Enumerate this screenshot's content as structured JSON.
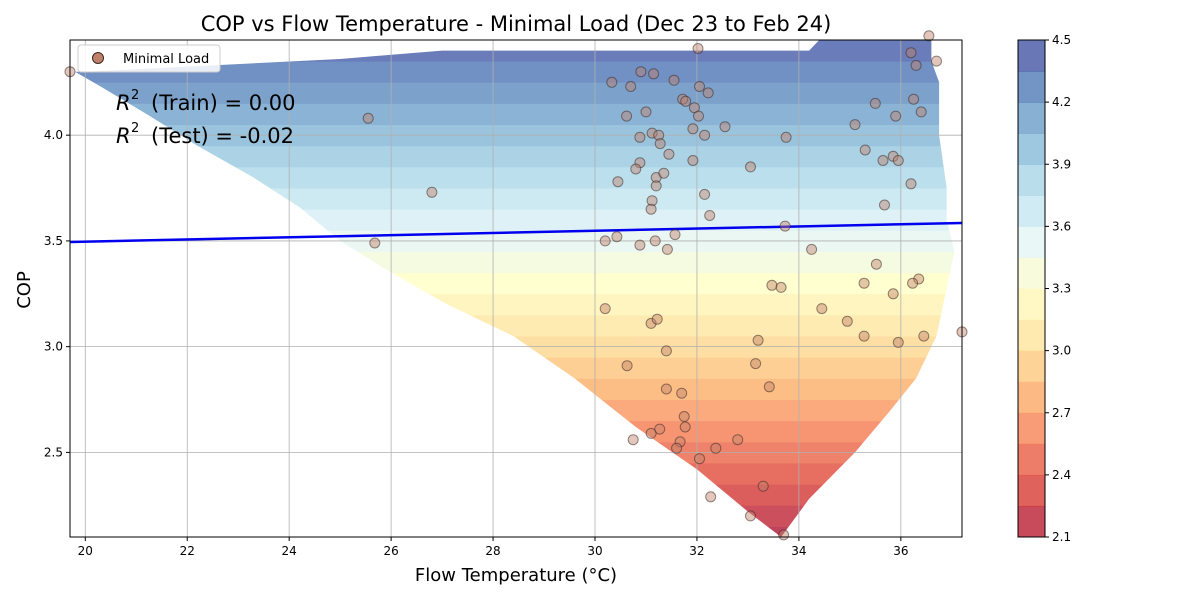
{
  "chart_data": {
    "type": "scatter",
    "title": "COP vs Flow Temperature - Minimal Load (Dec 23 to Feb 24)",
    "xlabel": "Flow Temperature (°C)",
    "ylabel": "COP",
    "xlim": [
      19.7,
      37.2
    ],
    "ylim": [
      2.1,
      4.45
    ],
    "x_ticks": [
      "20",
      "22",
      "24",
      "26",
      "28",
      "30",
      "32",
      "34",
      "36"
    ],
    "y_ticks": [
      "2.5",
      "3.0",
      "3.5",
      "4.0"
    ],
    "grid": true,
    "legend": {
      "placement": "top-left",
      "entries": [
        "Minimal Load"
      ]
    },
    "annotations": {
      "train": {
        "label": "(Train) = 0.00",
        "value": 0.0
      },
      "test": {
        "label": "(Test) = -0.02",
        "value": -0.02
      }
    },
    "regression_line": {
      "x": [
        19.7,
        37.2
      ],
      "y": [
        3.495,
        3.585
      ],
      "color": "#0000ee"
    },
    "colorbar": {
      "ticks": [
        "2.1",
        "2.4",
        "2.7",
        "3.0",
        "3.3",
        "3.6",
        "3.9",
        "4.2",
        "4.5"
      ],
      "range": [
        2.1,
        4.5
      ],
      "colormap": "RdYlBu"
    },
    "contour_region": {
      "bands": [
        2.1,
        2.15,
        2.25,
        2.35,
        2.45,
        2.55,
        2.65,
        2.75,
        2.85,
        2.95,
        3.05,
        3.15,
        3.25,
        3.35,
        3.45,
        3.55,
        3.65,
        3.75,
        3.85,
        3.95,
        4.05,
        4.15,
        4.25,
        4.35,
        4.45
      ],
      "left_edge": [
        [
          33.65,
          2.1
        ],
        [
          33.0,
          2.22
        ],
        [
          32.0,
          2.42
        ],
        [
          30.8,
          2.62
        ],
        [
          29.6,
          2.85
        ],
        [
          28.4,
          3.05
        ],
        [
          27.1,
          3.2
        ],
        [
          26.0,
          3.35
        ],
        [
          25.0,
          3.5
        ],
        [
          24.2,
          3.66
        ],
        [
          23.3,
          3.8
        ],
        [
          22.2,
          3.95
        ],
        [
          21.2,
          4.1
        ],
        [
          20.3,
          4.23
        ],
        [
          19.8,
          4.3
        ]
      ],
      "right_edge": [
        [
          33.65,
          2.1
        ],
        [
          34.2,
          2.28
        ],
        [
          35.1,
          2.5
        ],
        [
          35.8,
          2.7
        ],
        [
          36.3,
          2.85
        ],
        [
          36.7,
          3.05
        ],
        [
          37.05,
          3.45
        ],
        [
          36.9,
          3.6
        ],
        [
          36.9,
          3.75
        ],
        [
          36.75,
          4.0
        ],
        [
          36.75,
          4.25
        ],
        [
          36.6,
          4.35
        ],
        [
          36.6,
          4.45
        ],
        [
          34.4,
          4.45
        ],
        [
          34.2,
          4.4
        ],
        [
          27.0,
          4.4
        ],
        [
          25.0,
          4.36
        ],
        [
          20.0,
          4.3
        ]
      ]
    },
    "series": [
      {
        "name": "Minimal Load",
        "color": "#c0806a",
        "x": [
          19.7,
          32.02,
          36.55,
          36.7,
          37.2,
          30.33,
          30.9,
          31.15,
          30.7,
          31.55,
          31.72,
          32.05,
          32.22,
          31.0,
          31.78,
          31.95,
          32.03,
          36.2,
          36.3,
          36.4,
          36.25,
          25.55,
          31.12,
          31.25,
          30.62,
          30.88,
          31.92,
          32.15,
          32.55,
          33.75,
          35.1,
          35.5,
          35.9,
          31.28,
          31.45,
          31.92,
          35.3,
          35.65,
          35.85,
          35.95,
          30.88,
          30.8,
          31.2,
          31.35,
          31.2,
          30.45,
          33.05,
          35.68,
          36.2,
          31.12,
          31.1,
          32.15,
          26.8,
          32.25,
          31.57,
          31.18,
          30.2,
          30.43,
          30.88,
          31.42,
          33.73,
          34.25,
          25.68,
          35.52,
          36.35,
          36.23,
          35.28,
          35.85,
          33.47,
          33.65,
          34.45,
          34.95,
          30.2,
          31.1,
          31.22,
          33.2,
          35.28,
          36.45,
          35.95,
          31.4,
          30.63,
          33.15,
          33.42,
          31.4,
          31.7,
          31.75,
          31.77,
          31.27,
          31.1,
          30.75,
          31.67,
          31.6,
          32.37,
          32.8,
          32.05,
          33.3,
          32.27,
          33.05,
          33.7
        ],
        "y": [
          4.3,
          4.41,
          4.47,
          4.35,
          3.07,
          4.25,
          4.3,
          4.29,
          4.23,
          4.26,
          4.17,
          4.23,
          4.2,
          4.11,
          4.16,
          4.13,
          4.09,
          4.39,
          4.33,
          4.11,
          4.17,
          4.08,
          4.01,
          4.0,
          4.09,
          3.99,
          4.03,
          4.0,
          4.04,
          3.99,
          4.05,
          4.15,
          4.09,
          3.96,
          3.91,
          3.88,
          3.93,
          3.88,
          3.9,
          3.88,
          3.87,
          3.84,
          3.8,
          3.82,
          3.76,
          3.78,
          3.85,
          3.67,
          3.77,
          3.69,
          3.65,
          3.72,
          3.73,
          3.62,
          3.53,
          3.5,
          3.5,
          3.52,
          3.48,
          3.46,
          3.57,
          3.46,
          3.49,
          3.39,
          3.32,
          3.3,
          3.3,
          3.25,
          3.29,
          3.28,
          3.18,
          3.12,
          3.18,
          3.11,
          3.13,
          3.03,
          3.05,
          3.05,
          3.02,
          2.98,
          2.91,
          2.92,
          2.81,
          2.8,
          2.78,
          2.67,
          2.62,
          2.61,
          2.59,
          2.56,
          2.55,
          2.52,
          2.52,
          2.56,
          2.47,
          2.34,
          2.29,
          2.2,
          2.11
        ]
      }
    ]
  }
}
